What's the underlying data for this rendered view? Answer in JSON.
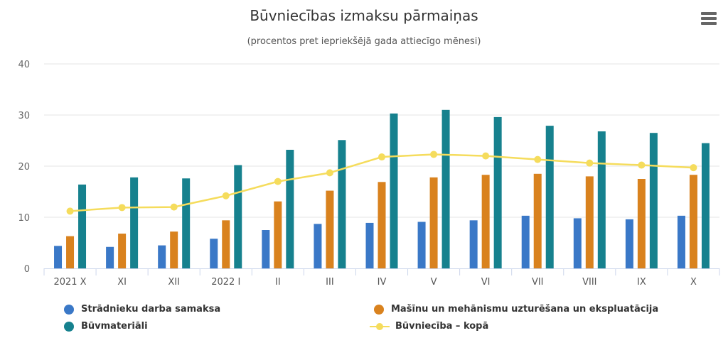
{
  "chart_data": {
    "type": "bar",
    "title": "Būvniecības izmaksu pārmaiņas",
    "subtitle": "(procentos pret iepriekšējā gada attiecīgo mēnesi)",
    "categories": [
      "2021 X",
      "XI",
      "XII",
      "2022 I",
      "II",
      "III",
      "IV",
      "V",
      "VI",
      "VII",
      "VIII",
      "IX",
      "X"
    ],
    "ylim": [
      0,
      40
    ],
    "yticks": [
      0,
      10,
      20,
      30,
      40
    ],
    "grid": true,
    "legend_position": "bottom",
    "series": [
      {
        "name": "Strādnieku darba samaksa",
        "kind": "bar",
        "color": "#3a78c7",
        "values": [
          4.4,
          4.2,
          4.5,
          5.8,
          7.5,
          8.7,
          8.9,
          9.1,
          9.4,
          10.3,
          9.8,
          9.6,
          10.3
        ]
      },
      {
        "name": "Mašīnu un mehānismu uzturēšana un ekspluatācija",
        "kind": "bar",
        "color": "#d9821e",
        "values": [
          6.3,
          6.8,
          7.2,
          9.4,
          13.1,
          15.2,
          16.9,
          17.8,
          18.3,
          18.5,
          18.0,
          17.5,
          18.3
        ]
      },
      {
        "name": "Būvmateriāli",
        "kind": "bar",
        "color": "#16818e",
        "values": [
          16.4,
          17.8,
          17.6,
          20.2,
          23.2,
          25.1,
          30.3,
          31.0,
          29.6,
          27.9,
          26.8,
          26.5,
          24.5
        ]
      },
      {
        "name": "Būvniecība – kopā",
        "kind": "line",
        "color": "#f5dc5c",
        "values": [
          11.2,
          11.9,
          12.0,
          14.2,
          17.0,
          18.7,
          21.8,
          22.3,
          22.0,
          21.3,
          20.6,
          20.2,
          19.7
        ]
      }
    ]
  },
  "menu_icon": "hamburger-menu-icon"
}
